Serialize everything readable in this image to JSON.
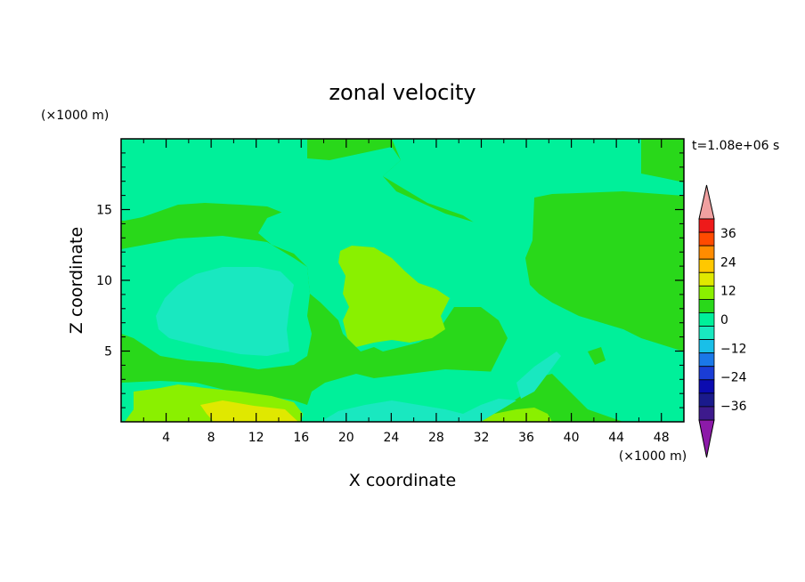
{
  "chart_data": {
    "type": "heatmap",
    "title": "zonal velocity",
    "xlabel": "X coordinate",
    "ylabel": "Z coordinate",
    "x_unit": "(×1000 m)",
    "y_unit": "(×1000 m)",
    "time_label": "t=1.08e+06 s",
    "xlim": [
      0,
      50
    ],
    "ylim": [
      0,
      20
    ],
    "x_ticks": [
      "4",
      "8",
      "12",
      "16",
      "20",
      "24",
      "28",
      "32",
      "36",
      "40",
      "44",
      "48"
    ],
    "y_ticks": [
      "5",
      "10",
      "15"
    ],
    "colorbar": {
      "tick_labels": [
        "36",
        "24",
        "12",
        "0",
        "−12",
        "−24",
        "−36"
      ],
      "levels": [
        -42,
        -36,
        -30,
        -24,
        -18,
        -12,
        -6,
        0,
        6,
        12,
        18,
        24,
        30,
        36,
        42
      ],
      "colors": [
        "#3d1a8c",
        "#1a1a8c",
        "#0b0bb0",
        "#1a3dd6",
        "#1a78e8",
        "#19bfe8",
        "#19e8c0",
        "#00f09a",
        "#29d81a",
        "#8af000",
        "#e0e800",
        "#ffc800",
        "#ff8c00",
        "#ff4a00",
        "#ee1a1a"
      ],
      "over_color": "#f0a0a0",
      "under_color": "#8c1aa8"
    },
    "fields": {
      "background_band": "0 to 6",
      "regions": [
        {
          "label": "upper-left cyan-green",
          "range": "-6 to 0"
        },
        {
          "label": "left mid cyan",
          "range": "-12 to -6"
        },
        {
          "label": "central yellow-green",
          "range": "6 to 12"
        },
        {
          "label": "bottom-left yellow",
          "range": "12 to 18"
        }
      ]
    }
  }
}
